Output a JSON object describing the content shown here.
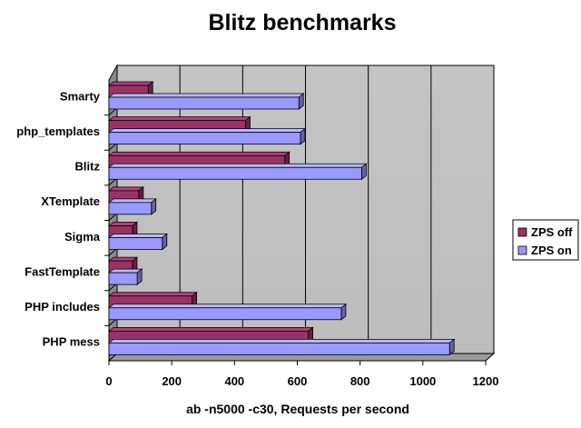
{
  "chart_data": {
    "type": "bar",
    "orientation": "horizontal",
    "title": "Blitz benchmarks",
    "xlabel": "ab -n5000 -c30, Requests per second",
    "ylabel": "",
    "xlim": [
      0,
      1200
    ],
    "x_ticks": [
      0,
      200,
      400,
      600,
      800,
      1000,
      1200
    ],
    "grid": true,
    "legend_position": "right",
    "categories": [
      "Smarty",
      "php_templates",
      "Blitz",
      "XTemplate",
      "Sigma",
      "FastTemplate",
      "PHP includes",
      "PHP mess"
    ],
    "series": [
      {
        "name": "ZPS off",
        "color": "#993366",
        "values": [
          125,
          435,
          560,
          95,
          75,
          75,
          265,
          635
        ]
      },
      {
        "name": "ZPS on",
        "color": "#9999ff",
        "values": [
          605,
          610,
          805,
          135,
          170,
          90,
          740,
          1085
        ]
      }
    ]
  }
}
